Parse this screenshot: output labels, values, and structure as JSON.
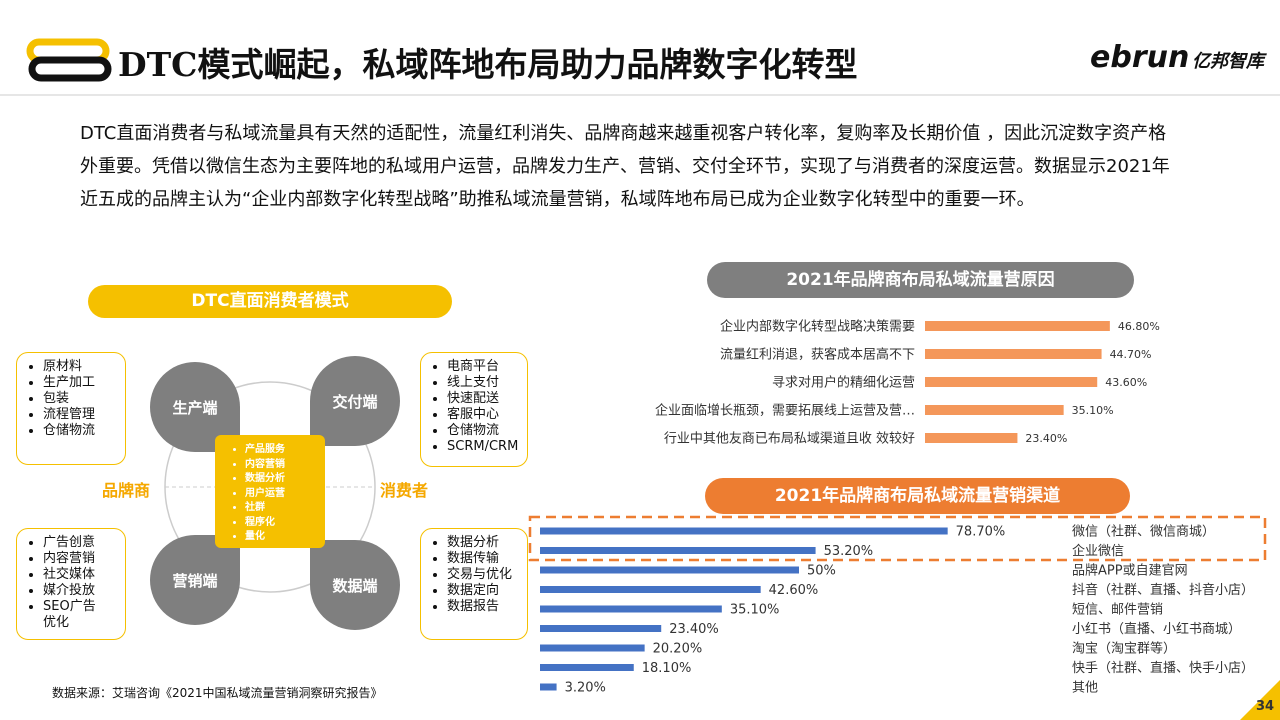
{
  "header": {
    "title": "DTC模式崛起，私域阵地布局助力品牌数字化转型",
    "logo": "ebrun",
    "logo_sub": "亿邦智库"
  },
  "intro": [
    "DTC直面消费者与私域流量具有天然的适配性，流量红利消失、品牌商越来越重视客户转化率，复购率及长期价值 ，因此沉淀数字资产格",
    "外重要。凭借以微信生态为主要阵地的私域用户运营，品牌发力生产、营销、交付全环节，实现了与消费者的深度运营。数据显示2021年",
    "近五成的品牌主认为“企业内部数字化转型战略”助推私域流量营销，私域阵地布局已成为企业数字化转型中的重要一环。"
  ],
  "diagram": {
    "title": "DTC直面消费者模式",
    "left_label": "品牌商",
    "right_label": "消费者",
    "center_items": [
      "产品服务",
      "内容营销",
      "数据分析",
      "用户运营",
      "社群",
      "程序化",
      "量化"
    ],
    "nodes": [
      {
        "label": "生产端",
        "items": [
          "原材料",
          "生产加工",
          "包装",
          "流程管理",
          "仓储物流"
        ]
      },
      {
        "label": "交付端",
        "items": [
          "电商平台",
          "线上支付",
          "快速配送",
          "客服中心",
          "仓储物流",
          "SCRM/CRM"
        ]
      },
      {
        "label": "营销端",
        "items": [
          "广告创意",
          "内容营销",
          "社交媒体",
          "媒介投放",
          "SEO广告优化"
        ]
      },
      {
        "label": "数据端",
        "items": [
          "数据分析",
          "数据传输",
          "交易与优化",
          "数据定向",
          "数据报告"
        ]
      }
    ]
  },
  "source": "数据来源：艾瑞咨询《2021中国私域流量营销洞察研究报告》",
  "page_number": "34",
  "chart_data": [
    {
      "type": "bar",
      "orientation": "horizontal",
      "title": "2021年品牌商布局私域流量营原因",
      "categories": [
        "企业内部数字化转型战略决策需要",
        "流量红利消退，获客成本居高不下",
        "寻求对用户的精细化运营",
        "企业面临增长瓶颈，需要拓展线上运营及营…",
        "行业中其他友商已布局私域渠道且收 效较好"
      ],
      "values": [
        46.8,
        44.7,
        43.6,
        35.1,
        23.4
      ],
      "value_labels": [
        "46.80%",
        "44.70%",
        "43.60%",
        "35.10%",
        "23.40%"
      ],
      "color": "#f4975a"
    },
    {
      "type": "bar",
      "orientation": "horizontal",
      "title": "2021年品牌商布局私域流量营销渠道",
      "categories": [
        "微信（社群、微信商城）",
        "企业微信",
        "品牌APP或自建官网",
        "抖音（社群、直播、抖音小店）",
        "短信、邮件营销",
        "小红书（直播、小红书商城）",
        "淘宝（淘宝群等）",
        "快手（社群、直播、快手小店）",
        "其他"
      ],
      "values": [
        78.7,
        53.2,
        50,
        42.6,
        35.1,
        23.4,
        20.2,
        18.1,
        3.2
      ],
      "value_labels": [
        "78.70%",
        "53.20%",
        "50%",
        "42.60%",
        "35.10%",
        "23.40%",
        "20.20%",
        "18.10%",
        "3.20%"
      ],
      "color": "#4472c4"
    }
  ]
}
